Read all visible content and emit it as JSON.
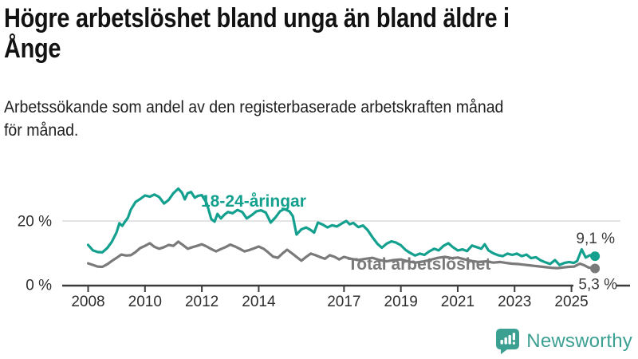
{
  "header": {
    "title": "Högre arbetslöshet bland unga än bland äldre i Ånge",
    "title_lines": [
      "Högre arbetslöshet bland unga än bland äldre i",
      "Ånge"
    ],
    "subtitle": "Arbetssökande som andel av den registerbaserade arbetskraften månad för månad.",
    "subtitle_lines": [
      "Arbetssökande som andel av den registerbaserade arbetskraften månad",
      "för månad."
    ]
  },
  "chart_data": {
    "type": "line",
    "title": "Högre arbetslöshet bland unga än bland äldre i Ånge",
    "subtitle": "Arbetssökande som andel av den registerbaserade arbetskraften månad för månad.",
    "xlabel": "",
    "ylabel": "",
    "unit": "%",
    "xlim": [
      2008,
      2025.83
    ],
    "ylim": [
      0,
      34.5
    ],
    "grid": "single-horizontal-gridline-at-20",
    "legend_position": "inline-series-labels",
    "x_ticks": [
      2008,
      2010,
      2012,
      2014,
      2017,
      2019,
      2021,
      2023,
      2025
    ],
    "y_ticks": [
      {
        "value": 20,
        "label": "20 %"
      },
      {
        "value": 0,
        "label": "0 %"
      }
    ],
    "series": [
      {
        "name": "Total arbetslöshet",
        "color": "#7A7A7A",
        "end_value": 5.3,
        "end_label": "5,3 %",
        "points": [
          [
            2008.0,
            6.9
          ],
          [
            2008.17,
            6.4
          ],
          [
            2008.33,
            5.9
          ],
          [
            2008.5,
            5.8
          ],
          [
            2008.67,
            6.6
          ],
          [
            2008.83,
            7.6
          ],
          [
            2009.0,
            8.6
          ],
          [
            2009.17,
            9.6
          ],
          [
            2009.33,
            9.3
          ],
          [
            2009.5,
            9.4
          ],
          [
            2009.67,
            10.4
          ],
          [
            2009.83,
            11.6
          ],
          [
            2010.0,
            12.3
          ],
          [
            2010.17,
            13.1
          ],
          [
            2010.33,
            12.0
          ],
          [
            2010.5,
            11.4
          ],
          [
            2010.67,
            11.9
          ],
          [
            2010.83,
            12.6
          ],
          [
            2011.0,
            12.3
          ],
          [
            2011.17,
            13.6
          ],
          [
            2011.33,
            12.6
          ],
          [
            2011.5,
            11.4
          ],
          [
            2011.67,
            11.9
          ],
          [
            2011.83,
            12.3
          ],
          [
            2012.0,
            12.8
          ],
          [
            2012.17,
            12.1
          ],
          [
            2012.33,
            11.3
          ],
          [
            2012.5,
            10.6
          ],
          [
            2012.67,
            11.3
          ],
          [
            2012.83,
            11.9
          ],
          [
            2013.0,
            12.7
          ],
          [
            2013.17,
            12.1
          ],
          [
            2013.33,
            11.4
          ],
          [
            2013.5,
            10.6
          ],
          [
            2013.67,
            11.0
          ],
          [
            2013.83,
            11.5
          ],
          [
            2014.0,
            12.1
          ],
          [
            2014.17,
            11.4
          ],
          [
            2014.33,
            10.3
          ],
          [
            2014.5,
            9.0
          ],
          [
            2014.67,
            8.6
          ],
          [
            2014.83,
            9.9
          ],
          [
            2015.0,
            11.1
          ],
          [
            2015.17,
            10.0
          ],
          [
            2015.33,
            8.9
          ],
          [
            2015.5,
            7.7
          ],
          [
            2015.67,
            8.9
          ],
          [
            2015.83,
            9.9
          ],
          [
            2016.0,
            9.4
          ],
          [
            2016.17,
            8.8
          ],
          [
            2016.33,
            8.3
          ],
          [
            2016.5,
            9.4
          ],
          [
            2016.67,
            8.9
          ],
          [
            2016.83,
            8.1
          ],
          [
            2017.0,
            8.9
          ],
          [
            2017.25,
            8.3
          ],
          [
            2017.5,
            7.9
          ],
          [
            2017.75,
            8.3
          ],
          [
            2018.0,
            8.6
          ],
          [
            2018.25,
            7.9
          ],
          [
            2018.5,
            7.5
          ],
          [
            2018.75,
            7.9
          ],
          [
            2019.0,
            8.1
          ],
          [
            2019.25,
            7.5
          ],
          [
            2019.5,
            7.1
          ],
          [
            2019.75,
            7.4
          ],
          [
            2020.0,
            7.9
          ],
          [
            2020.3,
            8.6
          ],
          [
            2020.55,
            8.9
          ],
          [
            2020.8,
            8.5
          ],
          [
            2021.0,
            8.7
          ],
          [
            2021.25,
            8.1
          ],
          [
            2021.5,
            7.6
          ],
          [
            2021.75,
            7.3
          ],
          [
            2022.0,
            7.5
          ],
          [
            2022.25,
            7.1
          ],
          [
            2022.5,
            7.3
          ],
          [
            2022.7,
            7.0
          ],
          [
            2022.9,
            6.8
          ],
          [
            2023.1,
            6.7
          ],
          [
            2023.3,
            6.5
          ],
          [
            2023.5,
            6.3
          ],
          [
            2023.7,
            6.1
          ],
          [
            2023.9,
            5.9
          ],
          [
            2024.1,
            5.7
          ],
          [
            2024.3,
            5.5
          ],
          [
            2024.5,
            5.4
          ],
          [
            2024.7,
            5.6
          ],
          [
            2024.9,
            5.8
          ],
          [
            2025.1,
            5.9
          ],
          [
            2025.3,
            6.8
          ],
          [
            2025.45,
            6.3
          ],
          [
            2025.6,
            5.6
          ],
          [
            2025.83,
            5.3
          ]
        ]
      },
      {
        "name": "18-24-åringar",
        "color": "#14A08E",
        "end_value": 9.1,
        "end_label": "9,1 %",
        "points": [
          [
            2008.0,
            12.6
          ],
          [
            2008.17,
            10.9
          ],
          [
            2008.33,
            10.4
          ],
          [
            2008.5,
            10.3
          ],
          [
            2008.67,
            11.6
          ],
          [
            2008.83,
            13.5
          ],
          [
            2009.0,
            16.5
          ],
          [
            2009.1,
            19.3
          ],
          [
            2009.2,
            18.5
          ],
          [
            2009.3,
            19.8
          ],
          [
            2009.4,
            21.0
          ],
          [
            2009.5,
            23.5
          ],
          [
            2009.67,
            25.9
          ],
          [
            2009.83,
            26.8
          ],
          [
            2010.0,
            27.9
          ],
          [
            2010.17,
            27.5
          ],
          [
            2010.33,
            28.2
          ],
          [
            2010.5,
            27.4
          ],
          [
            2010.67,
            25.4
          ],
          [
            2010.83,
            26.5
          ],
          [
            2011.0,
            28.6
          ],
          [
            2011.17,
            30.0
          ],
          [
            2011.3,
            28.8
          ],
          [
            2011.4,
            26.7
          ],
          [
            2011.5,
            28.6
          ],
          [
            2011.62,
            29.0
          ],
          [
            2011.75,
            27.2
          ],
          [
            2011.87,
            27.8
          ],
          [
            2012.0,
            28.0
          ],
          [
            2012.17,
            25.5
          ],
          [
            2012.33,
            20.6
          ],
          [
            2012.45,
            19.8
          ],
          [
            2012.55,
            22.2
          ],
          [
            2012.67,
            20.8
          ],
          [
            2012.8,
            22.0
          ],
          [
            2012.92,
            22.8
          ],
          [
            2013.08,
            22.4
          ],
          [
            2013.25,
            23.4
          ],
          [
            2013.42,
            22.8
          ],
          [
            2013.58,
            20.8
          ],
          [
            2013.75,
            21.8
          ],
          [
            2013.92,
            23.0
          ],
          [
            2014.08,
            23.3
          ],
          [
            2014.25,
            22.6
          ],
          [
            2014.42,
            19.5
          ],
          [
            2014.58,
            21.0
          ],
          [
            2014.75,
            23.0
          ],
          [
            2014.9,
            23.7
          ],
          [
            2015.08,
            23.0
          ],
          [
            2015.2,
            21.5
          ],
          [
            2015.33,
            15.8
          ],
          [
            2015.5,
            17.4
          ],
          [
            2015.67,
            18.0
          ],
          [
            2015.83,
            17.2
          ],
          [
            2015.95,
            16.4
          ],
          [
            2016.08,
            19.5
          ],
          [
            2016.25,
            18.9
          ],
          [
            2016.42,
            18.0
          ],
          [
            2016.58,
            18.7
          ],
          [
            2016.75,
            18.3
          ],
          [
            2016.92,
            19.2
          ],
          [
            2017.08,
            20.0
          ],
          [
            2017.2,
            19.0
          ],
          [
            2017.33,
            19.4
          ],
          [
            2017.5,
            18.1
          ],
          [
            2017.67,
            18.6
          ],
          [
            2017.83,
            17.2
          ],
          [
            2018.0,
            15.0
          ],
          [
            2018.17,
            13.0
          ],
          [
            2018.33,
            11.7
          ],
          [
            2018.5,
            13.0
          ],
          [
            2018.67,
            13.7
          ],
          [
            2018.83,
            13.3
          ],
          [
            2019.0,
            12.5
          ],
          [
            2019.17,
            11.0
          ],
          [
            2019.33,
            10.1
          ],
          [
            2019.5,
            9.3
          ],
          [
            2019.67,
            9.9
          ],
          [
            2019.83,
            9.5
          ],
          [
            2020.0,
            10.6
          ],
          [
            2020.17,
            11.4
          ],
          [
            2020.33,
            10.9
          ],
          [
            2020.5,
            12.3
          ],
          [
            2020.67,
            13.1
          ],
          [
            2020.83,
            11.9
          ],
          [
            2021.0,
            10.9
          ],
          [
            2021.17,
            11.2
          ],
          [
            2021.33,
            10.7
          ],
          [
            2021.5,
            12.4
          ],
          [
            2021.67,
            11.9
          ],
          [
            2021.83,
            11.4
          ],
          [
            2021.95,
            12.8
          ],
          [
            2022.08,
            10.9
          ],
          [
            2022.25,
            10.0
          ],
          [
            2022.42,
            9.4
          ],
          [
            2022.58,
            9.1
          ],
          [
            2022.75,
            9.9
          ],
          [
            2022.92,
            9.5
          ],
          [
            2023.08,
            9.9
          ],
          [
            2023.25,
            9.1
          ],
          [
            2023.42,
            9.6
          ],
          [
            2023.58,
            8.5
          ],
          [
            2023.75,
            8.8
          ],
          [
            2023.92,
            7.8
          ],
          [
            2024.08,
            7.2
          ],
          [
            2024.25,
            6.7
          ],
          [
            2024.42,
            7.9
          ],
          [
            2024.58,
            6.4
          ],
          [
            2024.75,
            7.0
          ],
          [
            2024.92,
            7.3
          ],
          [
            2025.08,
            7.0
          ],
          [
            2025.2,
            7.6
          ],
          [
            2025.36,
            11.2
          ],
          [
            2025.5,
            8.7
          ],
          [
            2025.65,
            9.4
          ],
          [
            2025.83,
            9.1
          ]
        ]
      }
    ]
  },
  "footer": {
    "logo_text": "Newsworthy",
    "logo_color": "#3BA092"
  }
}
